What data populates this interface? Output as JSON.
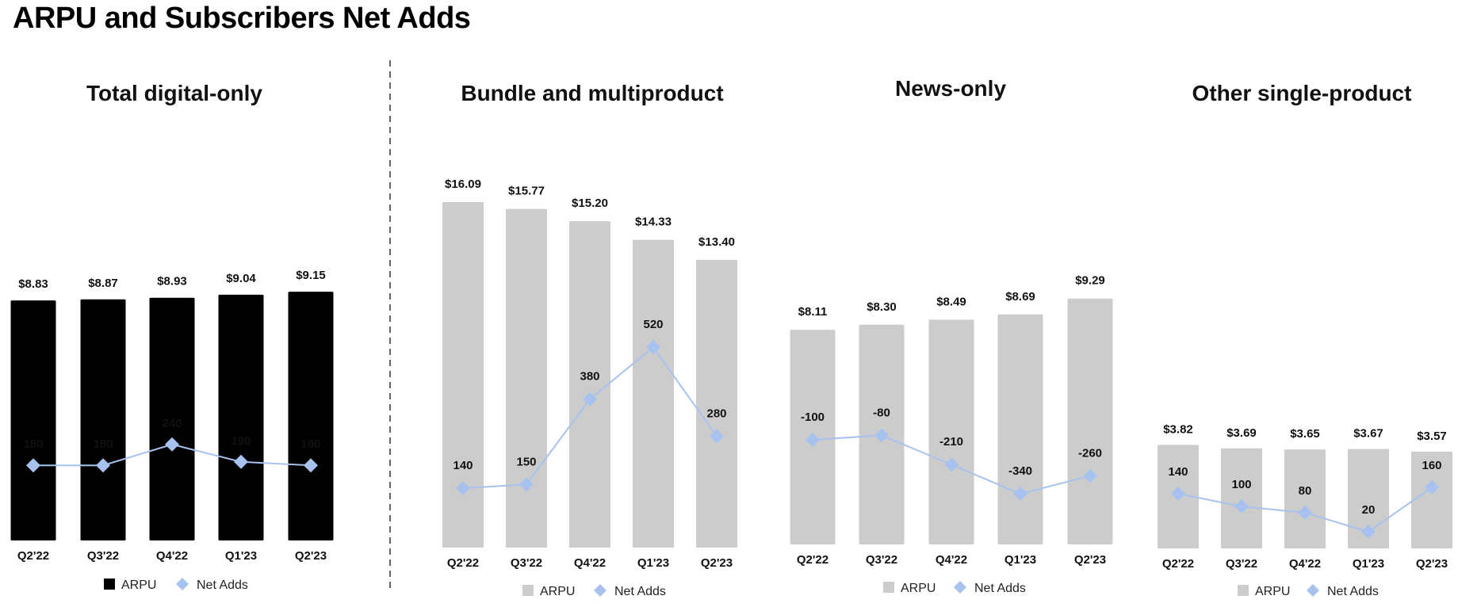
{
  "page": {
    "title": "ARPU and Subscribers Net Adds"
  },
  "colors": {
    "arpu_dark": "#000000",
    "arpu_light": "#cccccc",
    "net_adds": "#a7c2ee",
    "net_adds_label_light": "#9fb8e8",
    "divider": "#666666"
  },
  "chart_data": [
    {
      "type": "bar",
      "title": "Total digital-only",
      "categories": [
        "Q2'22",
        "Q3'22",
        "Q4'22",
        "Q1'23",
        "Q2'23"
      ],
      "series": [
        {
          "name": "ARPU",
          "kind": "bar",
          "color": "#000000",
          "values": [
            8.83,
            8.87,
            8.93,
            9.04,
            9.15
          ],
          "labels": [
            "$8.83",
            "$8.87",
            "$8.93",
            "$9.04",
            "$9.15"
          ]
        },
        {
          "name": "Net Adds",
          "kind": "line",
          "marker": "diamond",
          "color": "#a7c2ee",
          "values": [
            180,
            180,
            240,
            190,
            180
          ],
          "labels": [
            "180",
            "180",
            "240",
            "190",
            "180"
          ]
        }
      ],
      "legend": "bottom"
    },
    {
      "type": "bar",
      "title": "Bundle and multiproduct",
      "categories": [
        "Q2'22",
        "Q3'22",
        "Q4'22",
        "Q1'23",
        "Q2'23"
      ],
      "series": [
        {
          "name": "ARPU",
          "kind": "bar",
          "color": "#cccccc",
          "values": [
            16.09,
            15.77,
            15.2,
            14.33,
            13.4
          ],
          "labels": [
            "$16.09",
            "$15.77",
            "$15.20",
            "$14.33",
            "$13.40"
          ]
        },
        {
          "name": "Net Adds",
          "kind": "line",
          "marker": "diamond",
          "color": "#a7c2ee",
          "values": [
            140,
            150,
            380,
            520,
            280
          ],
          "labels": [
            "140",
            "150",
            "380",
            "520",
            "280"
          ]
        }
      ],
      "legend": "bottom"
    },
    {
      "type": "bar",
      "title": "News-only",
      "categories": [
        "Q2'22",
        "Q3'22",
        "Q4'22",
        "Q1'23",
        "Q2'23"
      ],
      "series": [
        {
          "name": "ARPU",
          "kind": "bar",
          "color": "#cccccc",
          "values": [
            8.11,
            8.3,
            8.49,
            8.69,
            9.29
          ],
          "labels": [
            "$8.11",
            "$8.30",
            "$8.49",
            "$8.69",
            "$9.29"
          ]
        },
        {
          "name": "Net Adds",
          "kind": "line",
          "marker": "diamond",
          "color": "#a7c2ee",
          "values": [
            -100,
            -80,
            -210,
            -340,
            -260
          ],
          "labels": [
            "-100",
            "-80",
            "-210",
            "-340",
            "-260"
          ]
        }
      ],
      "legend": "bottom"
    },
    {
      "type": "bar",
      "title": "Other single-product",
      "categories": [
        "Q2'22",
        "Q3'22",
        "Q4'22",
        "Q1'23",
        "Q2'23"
      ],
      "series": [
        {
          "name": "ARPU",
          "kind": "bar",
          "color": "#cccccc",
          "values": [
            3.82,
            3.69,
            3.65,
            3.67,
            3.57
          ],
          "labels": [
            "$3.82",
            "$3.69",
            "$3.65",
            "$3.67",
            "$3.57"
          ]
        },
        {
          "name": "Net Adds",
          "kind": "line",
          "marker": "diamond",
          "color": "#a7c2ee",
          "values": [
            140,
            100,
            80,
            20,
            160
          ],
          "labels": [
            "140",
            "100",
            "80",
            "20",
            "160"
          ]
        }
      ],
      "legend": "bottom"
    }
  ]
}
